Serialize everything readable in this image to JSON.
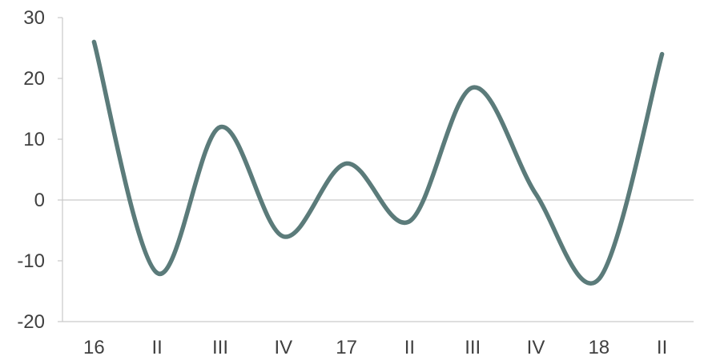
{
  "chart_data": {
    "type": "line",
    "title": "",
    "xlabel": "",
    "ylabel": "",
    "categories": [
      "16",
      "II",
      "III",
      "IV",
      "17",
      "II",
      "III",
      "IV",
      "18",
      "II"
    ],
    "series": [
      {
        "values": [
          26,
          -12,
          12,
          -6,
          6,
          -3.5,
          18.5,
          1,
          -13,
          24
        ]
      }
    ],
    "ylim": [
      -20,
      30
    ],
    "yticks": [
      -20,
      -10,
      0,
      10,
      20,
      30
    ],
    "grid": {
      "horizontal_zero_line": true
    },
    "legend": "none",
    "colors": {
      "line": "#5b7b7a",
      "axis": "#c9c9c9",
      "text": "#404040"
    }
  }
}
